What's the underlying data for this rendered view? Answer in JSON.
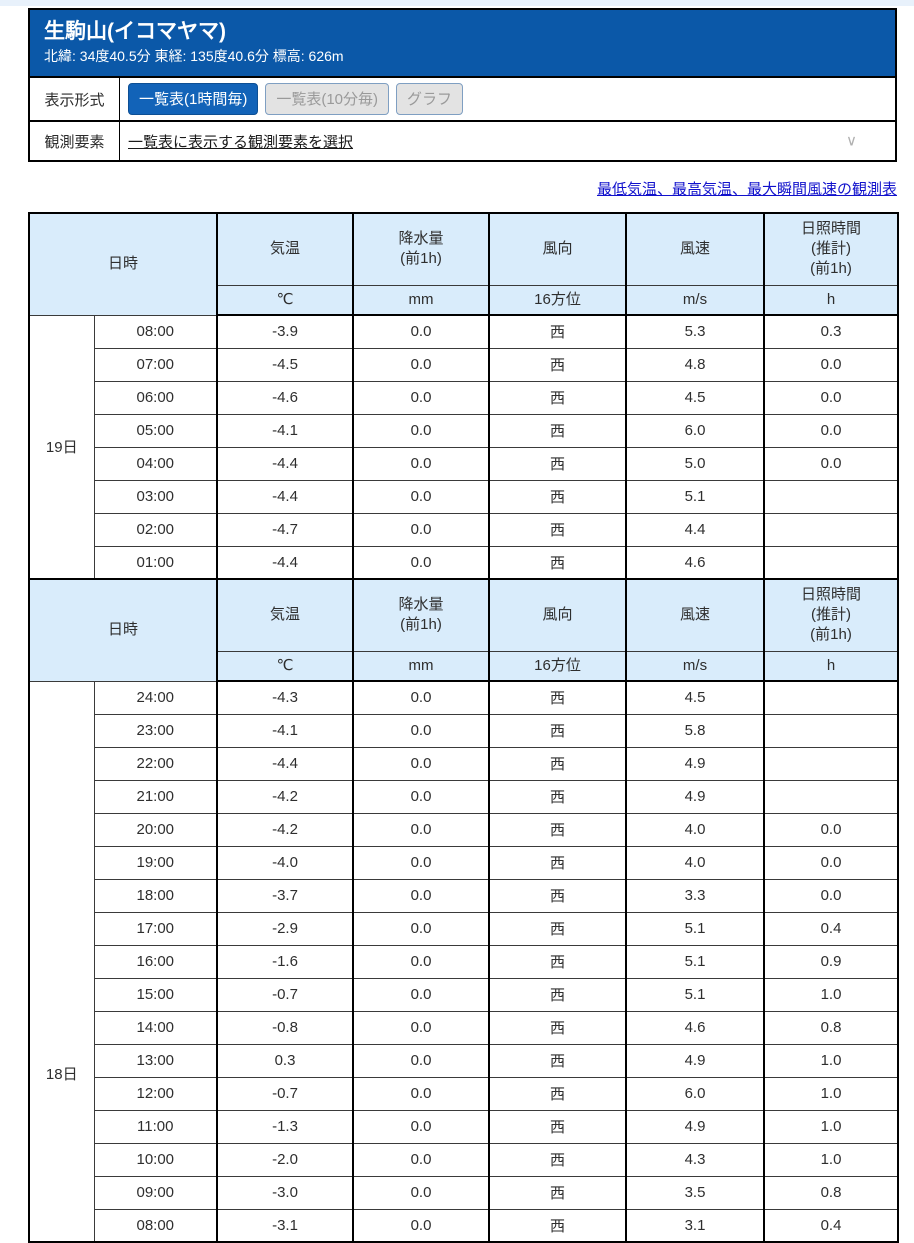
{
  "station": {
    "title": "生駒山(イコマヤマ)",
    "coords": "北緯: 34度40.5分 東経: 135度40.6分 標高: 626m"
  },
  "controls": {
    "format_label": "表示形式",
    "tabs": [
      {
        "label": "一覧表(1時間毎)",
        "active": true
      },
      {
        "label": "一覧表(10分毎)",
        "active": false
      },
      {
        "label": "グラフ",
        "active": false
      }
    ],
    "elements_label": "観測要素",
    "elements_selector": "一覧表に表示する観測要素を選択",
    "chevron_icon": "∨"
  },
  "links": {
    "extremes": "最低気温、最高気温、最大瞬間風速の観測表"
  },
  "table": {
    "header": {
      "datetime_label": "日時",
      "columns": [
        "気温",
        "降水量\n(前1h)",
        "風向",
        "風速",
        "日照時間\n(推計)\n(前1h)"
      ],
      "units": [
        "℃",
        "mm",
        "16方位",
        "m/s",
        "h"
      ]
    },
    "sections": [
      {
        "day": "19日",
        "rows": [
          [
            "08:00",
            "-3.9",
            "0.0",
            "西",
            "5.3",
            "0.3"
          ],
          [
            "07:00",
            "-4.5",
            "0.0",
            "西",
            "4.8",
            "0.0"
          ],
          [
            "06:00",
            "-4.6",
            "0.0",
            "西",
            "4.5",
            "0.0"
          ],
          [
            "05:00",
            "-4.1",
            "0.0",
            "西",
            "6.0",
            "0.0"
          ],
          [
            "04:00",
            "-4.4",
            "0.0",
            "西",
            "5.0",
            "0.0"
          ],
          [
            "03:00",
            "-4.4",
            "0.0",
            "西",
            "5.1",
            ""
          ],
          [
            "02:00",
            "-4.7",
            "0.0",
            "西",
            "4.4",
            ""
          ],
          [
            "01:00",
            "-4.4",
            "0.0",
            "西",
            "4.6",
            ""
          ]
        ]
      },
      {
        "day": "18日",
        "rows": [
          [
            "24:00",
            "-4.3",
            "0.0",
            "西",
            "4.5",
            ""
          ],
          [
            "23:00",
            "-4.1",
            "0.0",
            "西",
            "5.8",
            ""
          ],
          [
            "22:00",
            "-4.4",
            "0.0",
            "西",
            "4.9",
            ""
          ],
          [
            "21:00",
            "-4.2",
            "0.0",
            "西",
            "4.9",
            ""
          ],
          [
            "20:00",
            "-4.2",
            "0.0",
            "西",
            "4.0",
            "0.0"
          ],
          [
            "19:00",
            "-4.0",
            "0.0",
            "西",
            "4.0",
            "0.0"
          ],
          [
            "18:00",
            "-3.7",
            "0.0",
            "西",
            "3.3",
            "0.0"
          ],
          [
            "17:00",
            "-2.9",
            "0.0",
            "西",
            "5.1",
            "0.4"
          ],
          [
            "16:00",
            "-1.6",
            "0.0",
            "西",
            "5.1",
            "0.9"
          ],
          [
            "15:00",
            "-0.7",
            "0.0",
            "西",
            "5.1",
            "1.0"
          ],
          [
            "14:00",
            "-0.8",
            "0.0",
            "西",
            "4.6",
            "0.8"
          ],
          [
            "13:00",
            "0.3",
            "0.0",
            "西",
            "4.9",
            "1.0"
          ],
          [
            "12:00",
            "-0.7",
            "0.0",
            "西",
            "6.0",
            "1.0"
          ],
          [
            "11:00",
            "-1.3",
            "0.0",
            "西",
            "4.9",
            "1.0"
          ],
          [
            "10:00",
            "-2.0",
            "0.0",
            "西",
            "4.3",
            "1.0"
          ],
          [
            "09:00",
            "-3.0",
            "0.0",
            "西",
            "3.5",
            "0.8"
          ],
          [
            "08:00",
            "-3.1",
            "0.0",
            "西",
            "3.1",
            "0.4"
          ]
        ]
      }
    ]
  },
  "colors": {
    "header_bg": "#0b58a8",
    "active_tab_bg": "#1263b8",
    "table_header_bg": "#d9ecfb",
    "link_blue": "#1111cc"
  }
}
